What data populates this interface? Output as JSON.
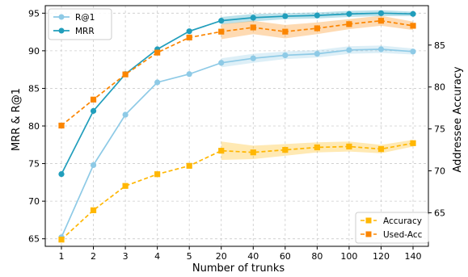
{
  "chart_data": {
    "type": "line",
    "xlabel": "Number of trunks",
    "ylabel_left": "MRR & R@1",
    "ylabel_right": "Addressee Accuracy",
    "x_categories": [
      "1",
      "2",
      "3",
      "4",
      "5",
      "20",
      "40",
      "60",
      "80",
      "100",
      "120",
      "140"
    ],
    "ylim_left": [
      64,
      96
    ],
    "ylim_right": [
      61,
      89.7
    ],
    "yticks_left": [
      65,
      70,
      75,
      80,
      85,
      90,
      95
    ],
    "yticks_right": [
      65,
      70,
      75,
      80,
      85
    ],
    "grid": true,
    "legend_left": {
      "placement": "top-left"
    },
    "legend_right": {
      "placement": "bottom-right"
    },
    "series": [
      {
        "name": "R@1",
        "axis": "left",
        "color": "#8ecae6",
        "marker": "circle",
        "dashed": false,
        "values": [
          65.2,
          74.8,
          81.5,
          85.8,
          86.9,
          88.4,
          89.0,
          89.4,
          89.6,
          90.1,
          90.2,
          89.9
        ],
        "band": [
          null,
          null,
          null,
          null,
          null,
          0.6,
          0.6,
          0.5,
          0.5,
          0.5,
          0.5,
          0.4
        ]
      },
      {
        "name": "MRR",
        "axis": "left",
        "color": "#219ebc",
        "marker": "circle",
        "dashed": false,
        "values": [
          73.6,
          82.0,
          86.9,
          90.2,
          92.6,
          94.0,
          94.4,
          94.6,
          94.7,
          94.9,
          95.0,
          94.9
        ],
        "band": [
          null,
          null,
          null,
          null,
          null,
          0.5,
          0.5,
          0.4,
          0.4,
          0.4,
          0.4,
          0.3
        ]
      },
      {
        "name": "Accuracy",
        "axis": "right",
        "color": "#ffb703",
        "marker": "square",
        "dashed": true,
        "values": [
          61.8,
          65.3,
          68.2,
          69.6,
          70.6,
          72.4,
          72.2,
          72.5,
          72.8,
          72.9,
          72.6,
          73.3
        ],
        "band": [
          null,
          null,
          null,
          null,
          null,
          1.1,
          0.8,
          0.7,
          0.6,
          0.6,
          0.5,
          0.4
        ]
      },
      {
        "name": "Used-Acc",
        "axis": "right",
        "color": "#fb8500",
        "marker": "square",
        "dashed": true,
        "values": [
          75.4,
          78.5,
          81.5,
          84.1,
          85.9,
          86.6,
          87.1,
          86.6,
          87.0,
          87.5,
          87.9,
          87.3
        ],
        "band": [
          null,
          null,
          null,
          null,
          null,
          0.9,
          0.8,
          0.8,
          0.7,
          0.6,
          0.6,
          0.5
        ]
      }
    ]
  }
}
